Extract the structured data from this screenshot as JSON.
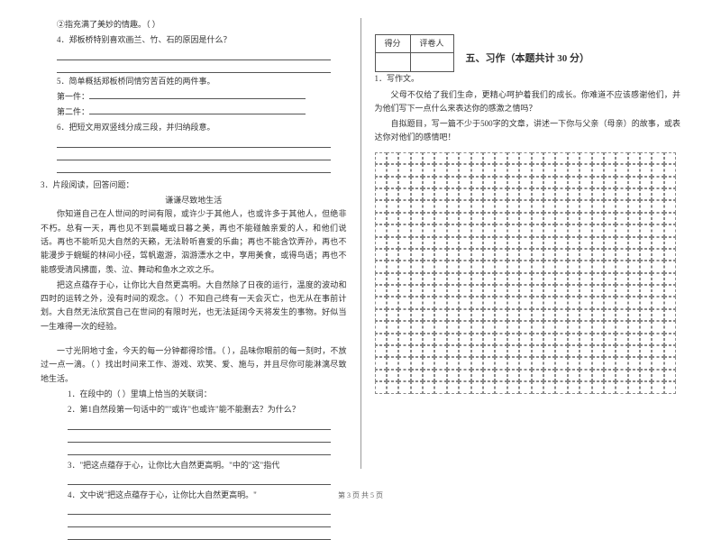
{
  "left": {
    "l1": "②指充满了美妙的情趣。（                    ）",
    "l2": "4．郑板桥特别喜欢画兰、竹、石的原因是什么？",
    "l3": "5．简单概括郑板桥同情穷苦百姓的两件事。",
    "l4": "第一件：",
    "l5": "第二件：",
    "l6": "6．把短文用双竖线分成三段，并归纳段意。",
    "q3": "3．片段阅读，回答问题：",
    "title": "谦谦尽致地生活",
    "p1": "你知道自己在人世间的时间有限，或许少于其他人，也或许多于其他人，但绝非不朽。总有一天，再也见不到晨曦或日暮之美，再也不能碰触亲爱的人，和他们说话。再也不能听见大自然的天籁，无法聆听喜爱的乐曲；再也不能含饮弄孙，再也不能漫步于蜿蜒的林间小径，驾帆遨游，泅游漂水之中，享用美食，或得鸟语；再也不能感受清风拂面，羡、泣、舞动和鱼水之欢之乐。",
    "p2": "把这点蕴存于心，让你比大自然更高明。大自然除了日夜的运行，温度的波动和四时的运转之外，没有时间的观念。（    ）不知自己终有一天会灭亡，也无从在事前计划。大自然无法欣赏自己在世间的有限时光，也无法延阔今天将发生的事物。好似当一生难得一次的经验。",
    "p3": "一寸光阴地寸金，今天的每一分钟都得珍惜。（    ），品味你眼前的每一刻时，不放过一点一滴。（    ）找出时间来工作、游戏、欢笑、爱、施与，并且尽你可能淋漓尽致地生活。",
    "q1": "1．在段中的（   ）里填上恰当的关联词：",
    "q2": "2．第1自然段第一句话中的\"\"或许\"也或许\"能不能删去？为什么？",
    "q3b": "3．\"把这点蕴存于心，让你比大自然更高明。\"中的\"这\"指代",
    "q4": "4．文中说\"把这点蕴存于心，让你比大自然更高明。\""
  },
  "right": {
    "score_h1": "得分",
    "score_h2": "评卷人",
    "section": "五、习作（本题共计 30 分）",
    "l1": "1．写作文。",
    "l2": "父母不仅给了我们生命，更精心呵护着我们的成长。你难道不应该感谢他们，并为他们写下一点什么来表达你的感激之情吗？",
    "l3": "自拟题目，写一篇不少于500字的文章，讲述一下你与父亲（母亲）的故事，或表达你对他们的感情吧！",
    "grid": {
      "rows": 20,
      "cols": 25
    }
  },
  "footer": "第 3 页  共 5 页"
}
